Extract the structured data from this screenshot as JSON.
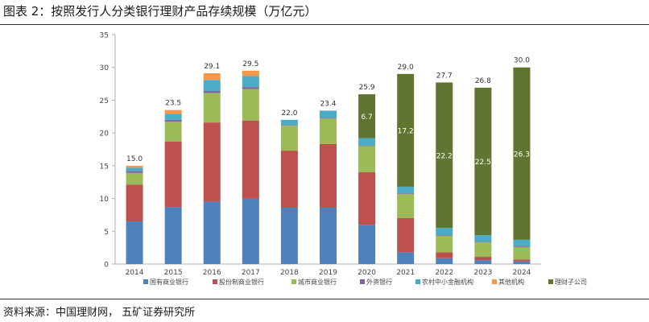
{
  "figure": {
    "title": "图表 2：按照发行人分类银行理财产品存续规模（万亿元）",
    "source": "资料来源：中国理财网，  五矿证券研究所"
  },
  "chart_data": {
    "type": "bar",
    "stacked": true,
    "title": "按照发行人分类银行理财产品存续规模（万亿元）",
    "xlabel": "",
    "ylabel": "",
    "ylim": [
      0,
      35
    ],
    "yticks": [
      "0",
      "5",
      "10",
      "15",
      "20",
      "25",
      "30",
      "35"
    ],
    "grid": false,
    "legend_position": "bottom",
    "categories": [
      "2014",
      "2015",
      "2016",
      "2017",
      "2018",
      "2019",
      "2020",
      "2021",
      "2022",
      "2023",
      "2024"
    ],
    "series": [
      {
        "name": "国有商业银行",
        "color": "#4f81bd",
        "values": [
          6.5,
          8.7,
          9.5,
          10.0,
          8.6,
          8.6,
          6.0,
          1.8,
          0.9,
          0.6,
          0.4
        ]
      },
      {
        "name": "股份制商业银行",
        "color": "#c0504d",
        "values": [
          5.6,
          10.0,
          12.1,
          11.9,
          8.7,
          9.7,
          8.0,
          5.2,
          0.9,
          0.5,
          0.3
        ]
      },
      {
        "name": "城市商业银行",
        "color": "#9bbb59",
        "values": [
          1.8,
          3.0,
          4.5,
          4.8,
          3.8,
          3.9,
          4.0,
          3.7,
          2.5,
          2.2,
          1.9
        ]
      },
      {
        "name": "外资银行",
        "color": "#8064a2",
        "values": [
          0.3,
          0.3,
          0.3,
          0.3,
          0.1,
          0.1,
          0.1,
          0.1,
          0.1,
          0.1,
          0.1
        ]
      },
      {
        "name": "农村中小金融机构",
        "color": "#4bacc6",
        "values": [
          0.5,
          0.9,
          1.6,
          1.7,
          0.8,
          1.1,
          1.1,
          1.0,
          1.1,
          1.0,
          1.0
        ]
      },
      {
        "name": "其他机构",
        "color": "#f79646",
        "values": [
          0.3,
          0.6,
          1.1,
          0.8,
          0.0,
          0.0,
          0.0,
          0.0,
          0.0,
          0.0,
          0.0
        ]
      },
      {
        "name": "理财子公司",
        "color": "#5f7530",
        "values": [
          0.0,
          0.0,
          0.0,
          0.0,
          0.0,
          0.0,
          6.7,
          17.2,
          22.2,
          22.5,
          26.3
        ]
      }
    ],
    "totals": [
      "15.0",
      "23.5",
      "29.1",
      "29.5",
      "22.0",
      "23.4",
      "25.9",
      "29.0",
      "27.7",
      "26.8",
      "30.0"
    ],
    "segment_labels": [
      {
        "category": "2020",
        "series": "理财子公司",
        "text": "6.7"
      },
      {
        "category": "2021",
        "series": "理财子公司",
        "text": "17.2"
      },
      {
        "category": "2022",
        "series": "理财子公司",
        "text": "22.2"
      },
      {
        "category": "2023",
        "series": "理财子公司",
        "text": "22.5"
      },
      {
        "category": "2024",
        "series": "理财子公司",
        "text": "26.3"
      }
    ]
  }
}
